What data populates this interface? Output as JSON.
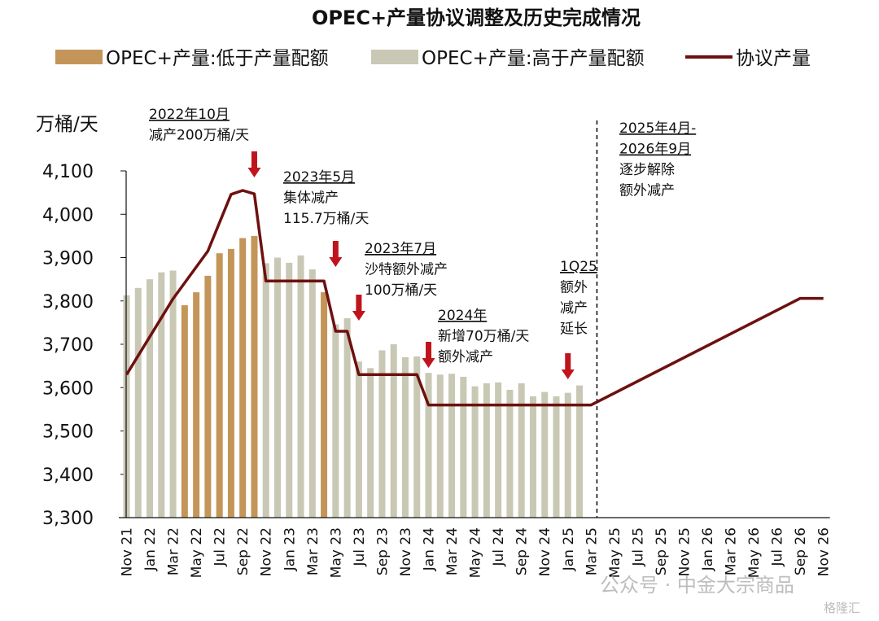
{
  "chart_data": {
    "type": "bar",
    "title": "OPEC+产量协议调整及历史完成情况",
    "unit_label": "万桶/天",
    "ylim": [
      3300,
      4100
    ],
    "yticks": [
      3300,
      3400,
      3500,
      3600,
      3700,
      3800,
      3900,
      4000,
      4100
    ],
    "ytick_labels": [
      "3,300",
      "3,400",
      "3,500",
      "3,600",
      "3,700",
      "3,800",
      "3,900",
      "4,000",
      "4,100"
    ],
    "x_months": [
      "Nov 21",
      "Dec 21",
      "Jan 22",
      "Feb 22",
      "Mar 22",
      "Apr 22",
      "May 22",
      "Jun 22",
      "Jul 22",
      "Aug 22",
      "Sep 22",
      "Oct 22",
      "Nov 22",
      "Dec 22",
      "Jan 23",
      "Feb 23",
      "Mar 23",
      "Apr 23",
      "May 23",
      "Jun 23",
      "Jul 23",
      "Aug 23",
      "Sep 23",
      "Oct 23",
      "Nov 23",
      "Dec 23",
      "Jan 24",
      "Feb 24",
      "Mar 24",
      "Apr 24",
      "May 24",
      "Jun 24",
      "Jul 24",
      "Aug 24",
      "Sep 24",
      "Oct 24",
      "Nov 24",
      "Dec 24",
      "Jan 25",
      "Feb 25",
      "Mar 25",
      "Apr 25",
      "May 25",
      "Jun 25",
      "Jul 25",
      "Aug 25",
      "Sep 25",
      "Oct 25",
      "Nov 25",
      "Dec 25",
      "Jan 26",
      "Feb 26",
      "Mar 26",
      "Apr 26",
      "May 26",
      "Jun 26",
      "Jul 26",
      "Aug 26",
      "Sep 26",
      "Oct 26",
      "Nov 26"
    ],
    "x_tick_labels": [
      "Nov 21",
      "Jan 22",
      "Mar 22",
      "May 22",
      "Jul 22",
      "Sep 22",
      "Nov 22",
      "Jan 23",
      "Mar 23",
      "May 23",
      "Jul 23",
      "Sep 23",
      "Nov 23",
      "Jan 24",
      "Mar 24",
      "May 24",
      "Jul 24",
      "Sep 24",
      "Nov 24",
      "Jan 25",
      "Mar 25",
      "May 25",
      "Jul 25",
      "Sep 25",
      "Nov 25",
      "Jan 26",
      "Mar 26",
      "May 26",
      "Jul 26",
      "Sep 26",
      "Nov 26"
    ],
    "series": [
      {
        "name": "OPEC+产量:低于产量配额",
        "color": "#c49558",
        "values": [
          null,
          null,
          null,
          null,
          null,
          3790,
          3820,
          3858,
          3910,
          3920,
          3945,
          3950,
          null,
          null,
          null,
          null,
          null,
          3820,
          null,
          null,
          null,
          null,
          null,
          null,
          null,
          null,
          null,
          null,
          null,
          null,
          null,
          null,
          null,
          null,
          null,
          null,
          null,
          null,
          null,
          null,
          null,
          null,
          null,
          null,
          null,
          null,
          null,
          null,
          null,
          null,
          null,
          null,
          null,
          null,
          null,
          null,
          null,
          null,
          null,
          null,
          null
        ]
      },
      {
        "name": "OPEC+产量:高于产量配额",
        "color": "#c8c8b4",
        "values": [
          3813,
          3830,
          3850,
          3866,
          3870,
          null,
          null,
          null,
          null,
          null,
          null,
          null,
          3887,
          3900,
          3888,
          3905,
          3873,
          null,
          3746,
          3760,
          3660,
          3645,
          3686,
          3700,
          3670,
          3672,
          3634,
          3630,
          3632,
          3625,
          3603,
          3610,
          3612,
          3595,
          3610,
          3580,
          3590,
          3580,
          3588,
          3605,
          null,
          null,
          null,
          null,
          null,
          null,
          null,
          null,
          null,
          null,
          null,
          null,
          null,
          null,
          null,
          null,
          null,
          null,
          null,
          null,
          null
        ]
      },
      {
        "name": "协议产量",
        "type": "line",
        "color": "#6e1010",
        "points": [
          [
            0,
            3630
          ],
          [
            4,
            3805
          ],
          [
            7,
            3915
          ],
          [
            9,
            4046
          ],
          [
            10,
            4055
          ],
          [
            11,
            4047
          ],
          [
            12,
            3846
          ],
          [
            17,
            3846
          ],
          [
            18,
            3730
          ],
          [
            19,
            3730
          ],
          [
            20,
            3630
          ],
          [
            25,
            3630
          ],
          [
            26,
            3560
          ],
          [
            39,
            3560
          ],
          [
            40,
            3560
          ],
          [
            58,
            3806
          ],
          [
            60,
            3806
          ]
        ]
      }
    ],
    "legend": {
      "placement": "top"
    },
    "separator_after": "Mar 25",
    "annotations": [
      {
        "lines": [
          "2022年10月",
          "减产200万桶/天"
        ],
        "arrow_month": "Oct 22"
      },
      {
        "lines": [
          "2023年5月",
          "集体减产",
          "115.7万桶/天"
        ],
        "arrow_month": "May 23"
      },
      {
        "lines": [
          "2023年7月",
          "沙特额外减产",
          "100万桶/天"
        ],
        "arrow_month": "Jul 23"
      },
      {
        "lines": [
          "2024年",
          "新增70万桶/天",
          "额外减产"
        ],
        "arrow_month": "Jan 24"
      },
      {
        "lines": [
          "1Q25",
          "额外",
          "减产",
          "延长"
        ],
        "arrow_month": "Jan 25"
      },
      {
        "lines": [
          "2025年4月-",
          "2026年9月",
          "逐步解除",
          "额外减产"
        ],
        "arrow_month": null
      }
    ]
  },
  "watermark": {
    "text": "公众号 · 中金大宗商品",
    "logo_text": "格隆汇"
  }
}
